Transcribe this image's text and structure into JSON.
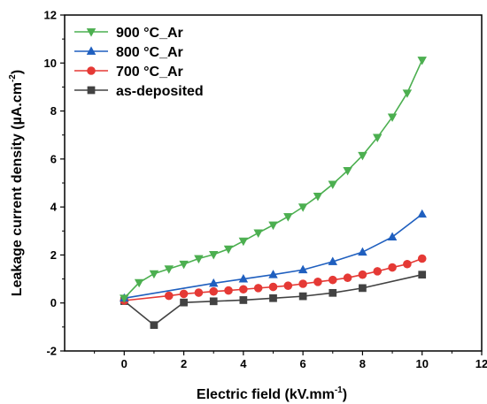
{
  "chart_data": {
    "type": "line",
    "xlabel": "Electric field (kV.mm",
    "xlabel_sup": "-1",
    "xlabel_end": ")",
    "ylabel": "Leakage current density (µA.cm",
    "ylabel_sup": "-2",
    "ylabel_end": ")",
    "xlim": [
      -2,
      12
    ],
    "ylim": [
      -2,
      12
    ],
    "xticks": [
      0,
      2,
      4,
      6,
      8,
      10,
      12
    ],
    "yticks": [
      -2,
      0,
      2,
      4,
      6,
      8,
      10,
      12
    ],
    "grid": false,
    "legend_position": "top-left",
    "series": [
      {
        "name": "900 °C_Ar",
        "color": "#4caf50",
        "marker": "triangle-down",
        "x": [
          0,
          0.5,
          1,
          1.5,
          2,
          2.5,
          3,
          3.5,
          4,
          4.5,
          5,
          5.5,
          6,
          6.5,
          7,
          7.5,
          8,
          8.5,
          9,
          9.5,
          10
        ],
        "y": [
          0.2,
          0.85,
          1.22,
          1.42,
          1.62,
          1.85,
          2.02,
          2.25,
          2.58,
          2.92,
          3.25,
          3.6,
          4.0,
          4.45,
          4.95,
          5.52,
          6.15,
          6.9,
          7.75,
          8.75,
          10.12
        ]
      },
      {
        "name": "800 °C_Ar",
        "color": "#1f5fbf",
        "marker": "triangle-up",
        "x": [
          0,
          3,
          4,
          5,
          6,
          7,
          8,
          9,
          10
        ],
        "y": [
          0.2,
          0.82,
          1.0,
          1.18,
          1.38,
          1.72,
          2.12,
          2.75,
          3.7
        ]
      },
      {
        "name": "700 °C_Ar",
        "color": "#e53935",
        "marker": "circle",
        "x": [
          0,
          1.5,
          2,
          2.5,
          3,
          3.5,
          4,
          4.5,
          5,
          5.5,
          6,
          6.5,
          7,
          7.5,
          8,
          8.5,
          9,
          9.5,
          10
        ],
        "y": [
          0.1,
          0.3,
          0.38,
          0.43,
          0.48,
          0.52,
          0.57,
          0.62,
          0.67,
          0.72,
          0.8,
          0.88,
          0.96,
          1.05,
          1.18,
          1.32,
          1.48,
          1.62,
          1.85
        ]
      },
      {
        "name": "as-deposited",
        "color": "#424242",
        "marker": "square",
        "x": [
          0,
          1,
          2,
          3,
          4,
          5,
          6,
          7,
          8,
          10
        ],
        "y": [
          0.08,
          -0.92,
          0.02,
          0.07,
          0.12,
          0.2,
          0.28,
          0.42,
          0.62,
          1.18
        ]
      }
    ]
  }
}
